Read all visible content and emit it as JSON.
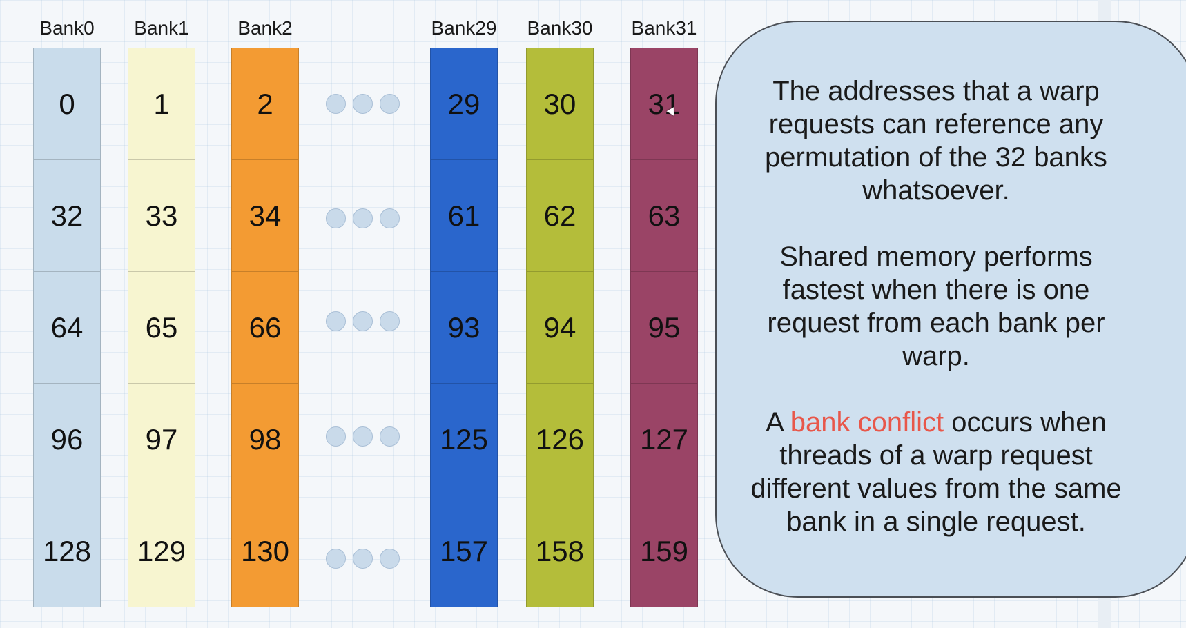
{
  "banks": [
    {
      "label": "Bank0",
      "color": "#c9dceb",
      "cells": [
        "0",
        "32",
        "64",
        "96",
        "128"
      ]
    },
    {
      "label": "Bank1",
      "color": "#f7f5d0",
      "cells": [
        "1",
        "33",
        "65",
        "97",
        "129"
      ]
    },
    {
      "label": "Bank2",
      "color": "#f39b33",
      "cells": [
        "2",
        "34",
        "66",
        "98",
        "130"
      ]
    },
    {
      "label": "Bank29",
      "color": "#2a66cc",
      "cells": [
        "29",
        "61",
        "93",
        "125",
        "157"
      ]
    },
    {
      "label": "Bank30",
      "color": "#b4bd3a",
      "cells": [
        "30",
        "62",
        "94",
        "126",
        "158"
      ]
    },
    {
      "label": "Bank31",
      "color": "#9a4466",
      "cells": [
        "31",
        "63",
        "95",
        "127",
        "159"
      ]
    }
  ],
  "callout": {
    "para1": "The addresses that a warp requests can reference any permutation of the 32 banks whatsoever.",
    "para2": "Shared memory performs fastest when there is one request from each bank per warp.",
    "para3_prefix": "A ",
    "para3_highlight": "bank conflict",
    "para3_suffix": " occurs when threads of a warp request different values from the same bank in a single request.",
    "highlight_color": "#e8574a"
  }
}
